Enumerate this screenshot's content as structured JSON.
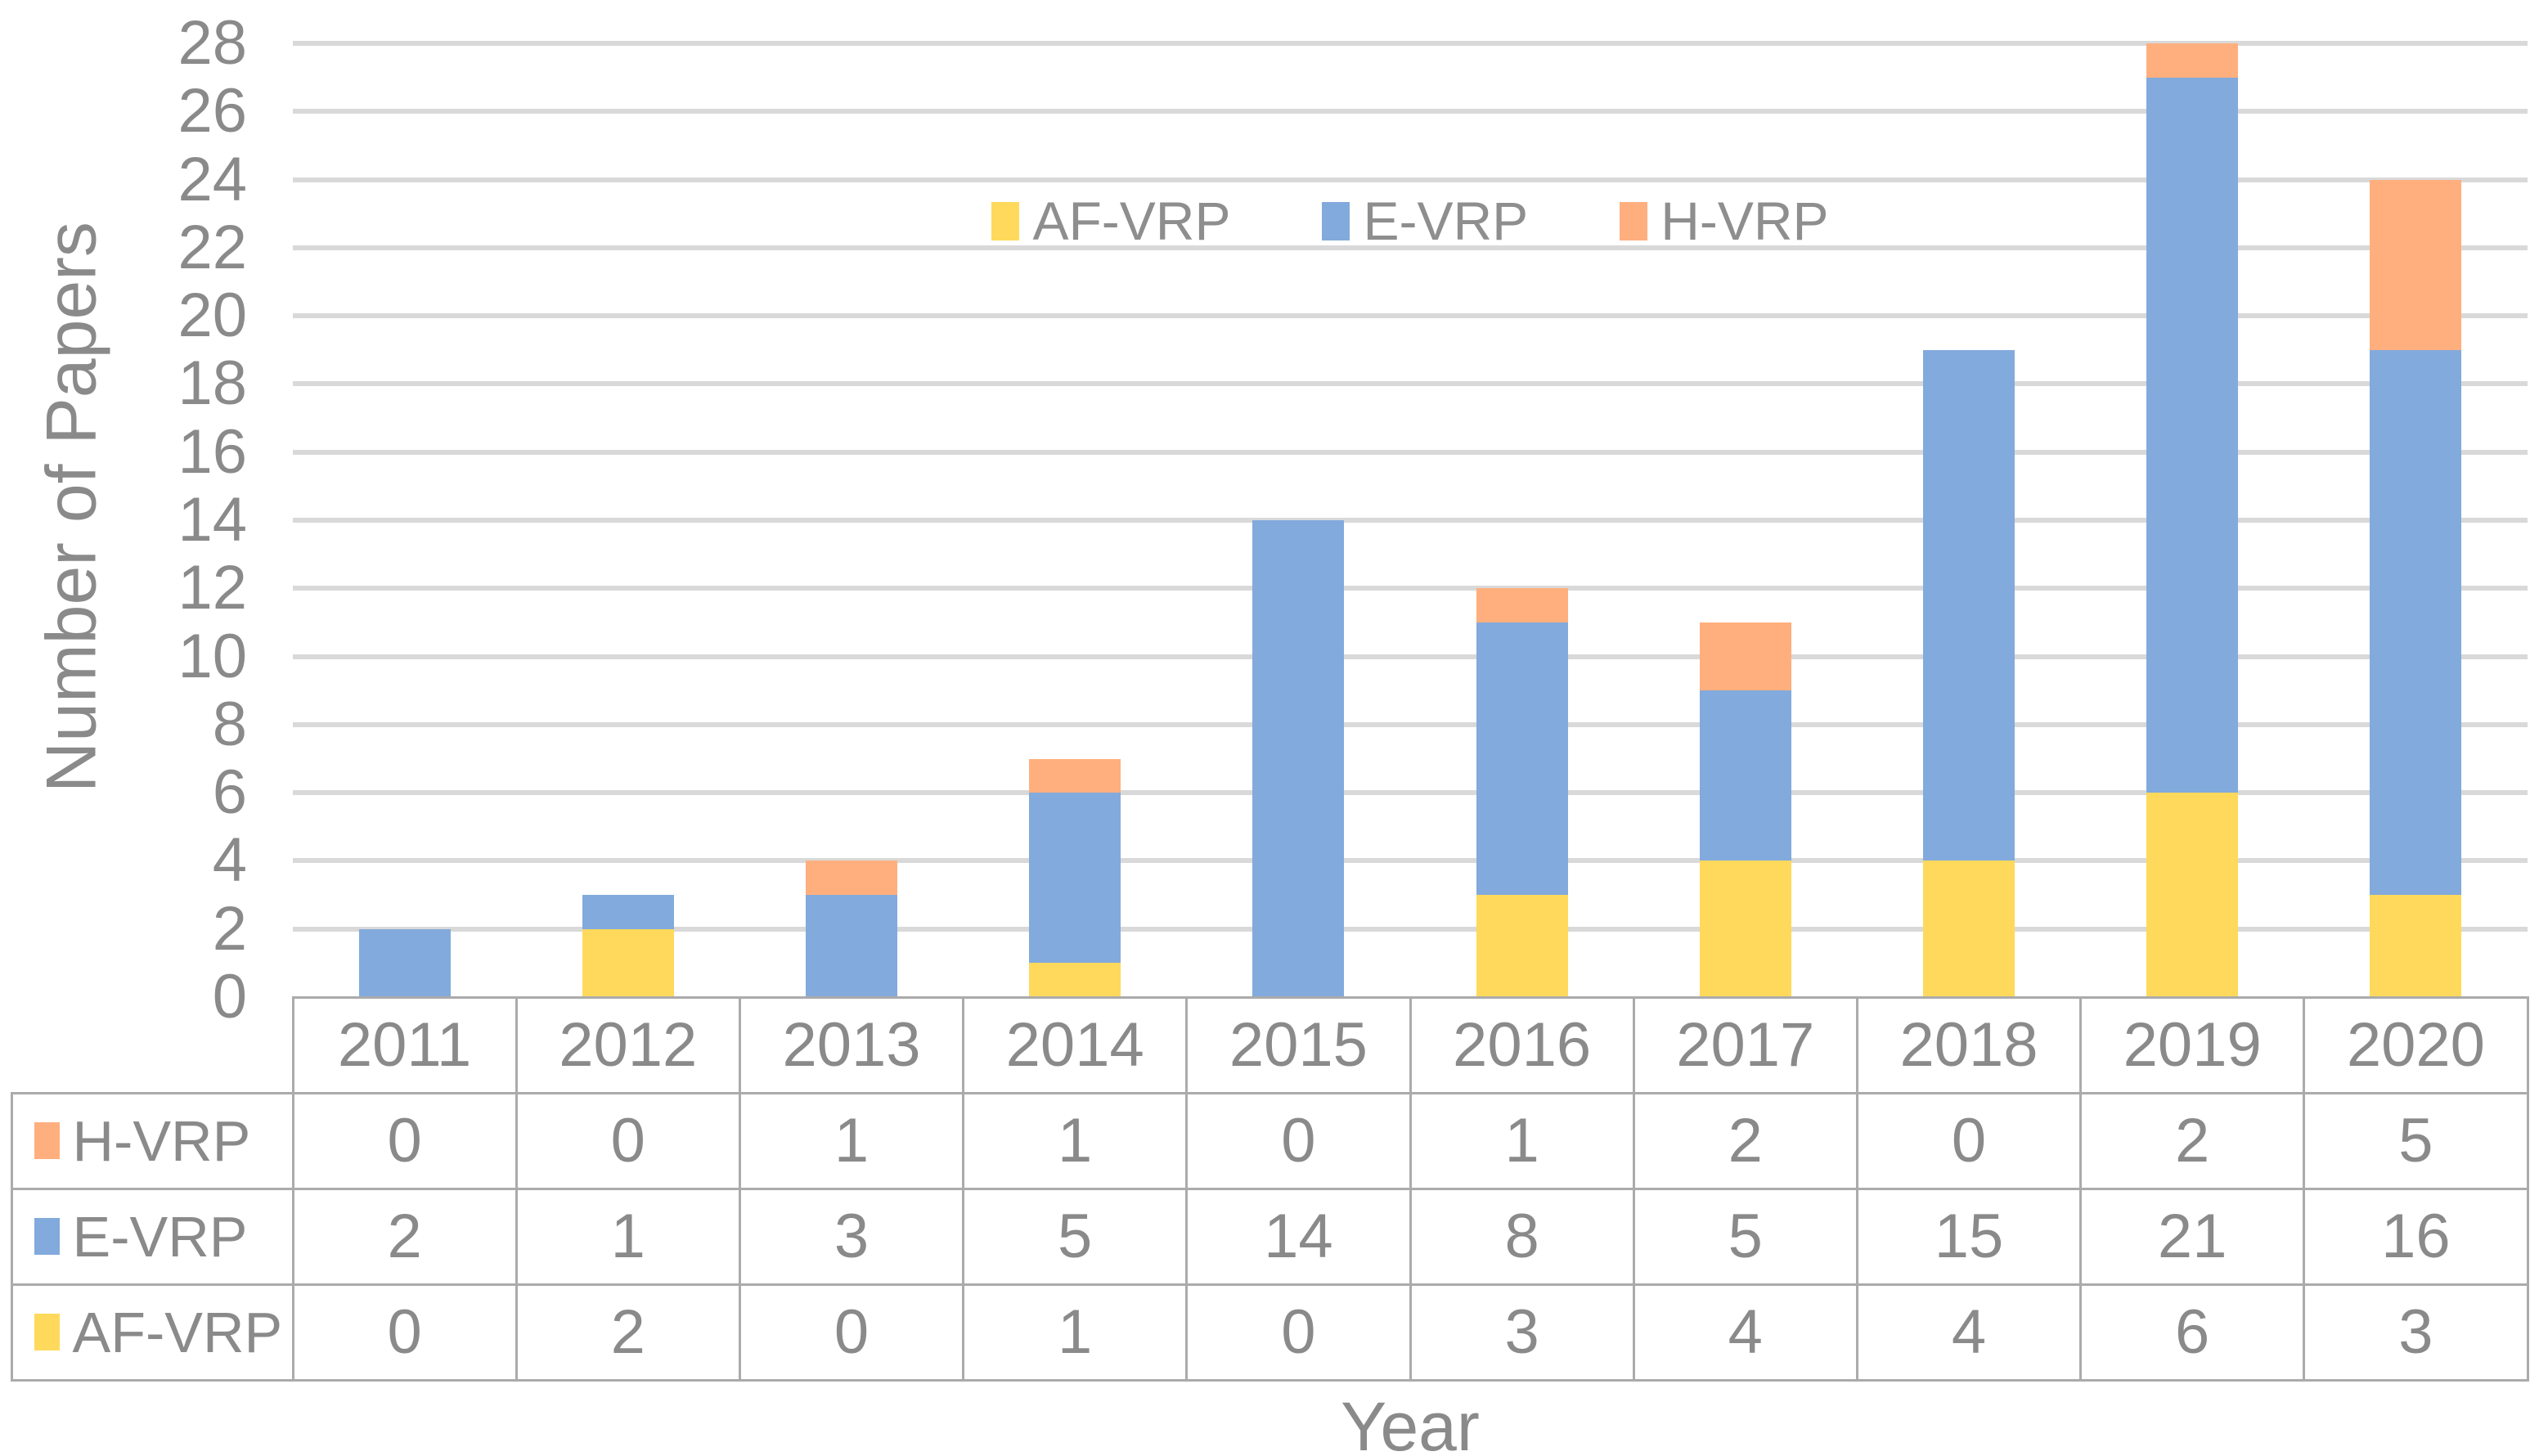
{
  "chart_data": {
    "type": "bar",
    "stacked": true,
    "title": "",
    "x_axis_label": "Year",
    "y_axis_label": "Number of Papers",
    "categories": [
      "2011",
      "2012",
      "2013",
      "2014",
      "2015",
      "2016",
      "2017",
      "2018",
      "2019",
      "2020"
    ],
    "series": [
      {
        "name": "AF-VRP",
        "color": "#FFD95C",
        "values": [
          0,
          2,
          0,
          1,
          0,
          3,
          4,
          4,
          6,
          3
        ]
      },
      {
        "name": "E-VRP",
        "color": "#82AADC",
        "values": [
          2,
          1,
          3,
          5,
          14,
          8,
          5,
          15,
          21,
          16
        ]
      },
      {
        "name": "H-VRP",
        "color": "#FFAF7E",
        "values": [
          0,
          0,
          1,
          1,
          0,
          1,
          2,
          0,
          2,
          5
        ]
      }
    ],
    "stack_order_bottom_to_top": [
      "AF-VRP",
      "E-VRP",
      "H-VRP"
    ],
    "legend": {
      "position": "top-center",
      "entries": [
        "AF-VRP",
        "E-VRP",
        "H-VRP"
      ]
    },
    "y_axis": {
      "min": 0,
      "max": 28,
      "tick_step": 2,
      "ticks": [
        0,
        2,
        4,
        6,
        8,
        10,
        12,
        14,
        16,
        18,
        20,
        22,
        24,
        26,
        28
      ]
    },
    "grid": true,
    "bars_clipped_at_axis_max": [
      "2019"
    ],
    "data_table": {
      "shown": true,
      "row_order_top_to_bottom": [
        "H-VRP",
        "E-VRP",
        "AF-VRP"
      ]
    }
  },
  "theme": {
    "background": "#FFFFFF",
    "text_color": "#8A8A8A",
    "gridline_color": "#D9D9D9",
    "table_border_color": "#ABABAB"
  }
}
